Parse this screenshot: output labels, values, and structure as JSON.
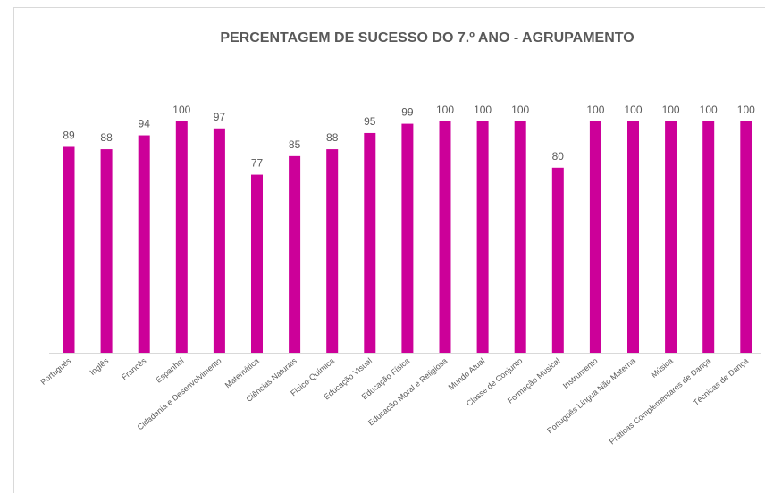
{
  "chart_data": {
    "type": "bar",
    "title": "PERCENTAGEM DE SUCESSO DO 7.º ANO - AGRUPAMENTO",
    "categories": [
      "Português",
      "Inglês",
      "Francês",
      "Espanhol",
      "Cidadania e Desenvolvimento",
      "Matemática",
      "Ciências Naturais",
      "Físico-Química",
      "Educação Visual",
      "Educação Física",
      "Educação Moral e Religiosa",
      "Mundo Atual",
      "Classe de Conjunto",
      "Formação Musical",
      "Instrumento",
      "Português Língua Não Materna",
      "Música",
      "Práticas Complementares de Dança",
      "Técnicas de Dança"
    ],
    "values": [
      89,
      88,
      94,
      100,
      97,
      77,
      85,
      88,
      95,
      99,
      100,
      100,
      100,
      80,
      100,
      100,
      100,
      100,
      100
    ],
    "color": "#cc0099",
    "ylim": [
      0,
      100
    ]
  }
}
